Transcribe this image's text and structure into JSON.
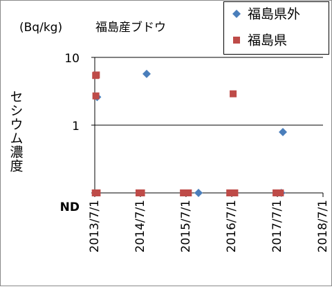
{
  "chart_data": {
    "type": "scatter",
    "unit": "(Bq/kg)",
    "title": "福島産ブドウ",
    "y_label": "セシウム濃度",
    "log_y": true,
    "grid": true,
    "legend": "top-right",
    "xlim": [
      "2013/7/1",
      "2018/7/1"
    ],
    "xticks": [
      "2013/7/1",
      "2014/7/1",
      "2015/7/1",
      "2016/7/1",
      "2017/7/1",
      "2018/7/1"
    ],
    "ylim": [
      0.1,
      10
    ],
    "yticks": [
      {
        "value": 0.1,
        "label": "ND"
      },
      1,
      10
    ],
    "series": [
      {
        "name": "福島県外",
        "color": "#4a7ebb",
        "marker": "diamond",
        "x": [
          "2013/7/20",
          "2014/8/20",
          "2015/10/9",
          "2017/8/14",
          "2017/8/1"
        ],
        "values": [
          2.6,
          5.7,
          0.1,
          0.79,
          0.1
        ]
      },
      {
        "name": "福島県",
        "color": "#be4b48",
        "marker": "square",
        "x": [
          "2013/7/8",
          "2013/7/14",
          "2013/7/10",
          "2013/7/5",
          "2013/7/20",
          "2014/6/20",
          "2014/7/10",
          "2015/6/10",
          "2015/7/1",
          "2015/7/20",
          "2016/6/15",
          "2016/7/5",
          "2016/7/12",
          "2016/7/25",
          "2017/6/20",
          "2017/7/5",
          "2017/7/25"
        ],
        "values": [
          5.4,
          5.5,
          2.7,
          0.1,
          0.1,
          0.1,
          0.1,
          0.1,
          0.1,
          0.1,
          0.1,
          0.1,
          2.9,
          0.1,
          0.1,
          0.1,
          0.1
        ]
      }
    ]
  }
}
